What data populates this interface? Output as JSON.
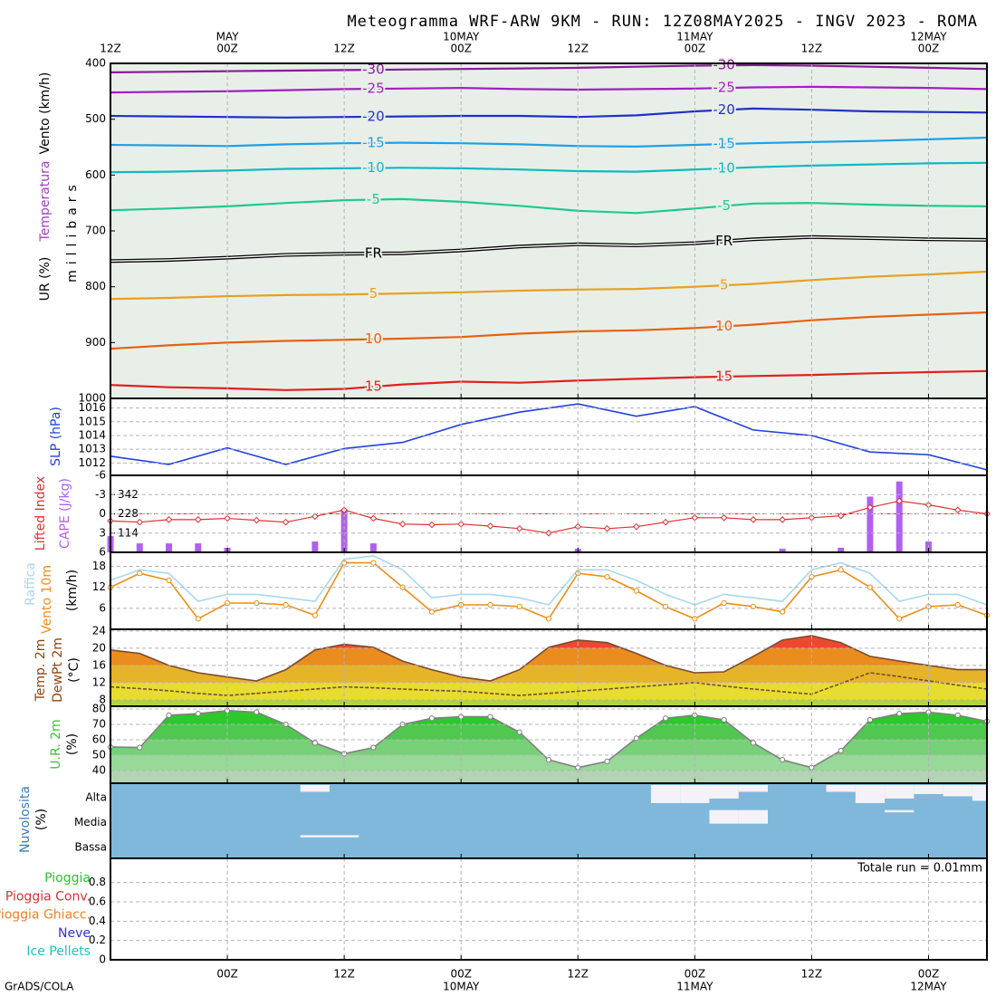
{
  "title": "Meteogramma WRF-ARW 9KM - RUN: 12Z08MAY2025 - INGV 2023 - ROMA",
  "footer": "GrADS/COLA",
  "time_axis": {
    "xlim": [
      0,
      90
    ],
    "ticks_top": [
      {
        "value": 0,
        "label": "12Z"
      },
      {
        "value": 12,
        "label": "00Z"
      },
      {
        "value": 24,
        "label": "12Z"
      },
      {
        "value": 36,
        "label": "00Z"
      },
      {
        "value": 48,
        "label": "12Z"
      },
      {
        "value": 60,
        "label": "00Z"
      },
      {
        "value": 72,
        "label": "12Z"
      },
      {
        "value": 84,
        "label": "00Z"
      }
    ],
    "dates_top": [
      {
        "value": 12,
        "label": "MAY"
      },
      {
        "value": 36,
        "label": "10MAY"
      },
      {
        "value": 60,
        "label": "11MAY"
      },
      {
        "value": 84,
        "label": "12MAY"
      }
    ],
    "ticks_bottom": [
      {
        "value": 12,
        "label": "00Z"
      },
      {
        "value": 24,
        "label": "12Z"
      },
      {
        "value": 36,
        "label": "00Z"
      },
      {
        "value": 48,
        "label": "12Z"
      },
      {
        "value": 60,
        "label": "00Z"
      },
      {
        "value": 72,
        "label": "12Z"
      },
      {
        "value": 84,
        "label": "00Z"
      }
    ],
    "dates_bottom": [
      {
        "value": 36,
        "label": "10MAY"
      },
      {
        "value": 60,
        "label": "11MAY"
      },
      {
        "value": 84,
        "label": "12MAY"
      }
    ]
  },
  "chart_data": [
    {
      "type": "contour",
      "labels": [
        {
          "text": "Vento (km/h)",
          "color": "#000000"
        },
        {
          "text": "Temperatura",
          "color": "#a040c0"
        },
        {
          "text": "UR (%)",
          "color": "#000000"
        },
        {
          "text": "millibars",
          "color": "#000000"
        }
      ],
      "x": [
        0,
        6,
        12,
        18,
        24,
        30,
        36,
        42,
        48,
        54,
        60,
        66,
        72,
        78,
        84,
        90
      ],
      "ylim": [
        1000,
        400
      ],
      "yticks": [
        400,
        500,
        600,
        700,
        800,
        900,
        1000
      ],
      "series": [
        {
          "name": "-30",
          "color": "#8b1a9b",
          "values": [
            416,
            415,
            414,
            413,
            412,
            411,
            410,
            409,
            408,
            406,
            404,
            403,
            404,
            406,
            408,
            410
          ]
        },
        {
          "name": "-25",
          "color": "#a020c0",
          "values": [
            452,
            451,
            450,
            448,
            446,
            445,
            444,
            446,
            447,
            446,
            445,
            443,
            442,
            443,
            444,
            446
          ]
        },
        {
          "name": "-20",
          "color": "#2030c8",
          "values": [
            494,
            495,
            496,
            497,
            496,
            495,
            494,
            494,
            496,
            493,
            486,
            481,
            483,
            486,
            487,
            488
          ]
        },
        {
          "name": "-15",
          "color": "#1ea0e6",
          "values": [
            546,
            547,
            548,
            545,
            543,
            542,
            543,
            545,
            548,
            549,
            546,
            543,
            541,
            539,
            536,
            533
          ]
        },
        {
          "name": "-10",
          "color": "#10b8c0",
          "values": [
            595,
            594,
            592,
            589,
            588,
            587,
            588,
            590,
            593,
            594,
            590,
            586,
            583,
            581,
            579,
            578
          ]
        },
        {
          "name": "-5",
          "color": "#20c890",
          "values": [
            663,
            660,
            656,
            650,
            645,
            643,
            648,
            655,
            664,
            668,
            660,
            651,
            650,
            653,
            655,
            656
          ]
        },
        {
          "name": "FR",
          "color": "#000000",
          "values": [
            754,
            752,
            748,
            743,
            741,
            740,
            735,
            728,
            724,
            726,
            722,
            715,
            711,
            713,
            715,
            716
          ]
        },
        {
          "name": "5",
          "color": "#e8a020",
          "values": [
            822,
            820,
            817,
            815,
            814,
            812,
            810,
            807,
            805,
            804,
            800,
            795,
            788,
            782,
            778,
            773
          ]
        },
        {
          "name": "10",
          "color": "#e86010",
          "values": [
            911,
            905,
            900,
            897,
            895,
            893,
            890,
            884,
            880,
            878,
            874,
            868,
            860,
            854,
            850,
            846
          ]
        },
        {
          "name": "15",
          "color": "#e02020",
          "values": [
            976,
            980,
            982,
            985,
            983,
            975,
            970,
            972,
            968,
            965,
            962,
            960,
            958,
            955,
            953,
            951
          ]
        }
      ]
    },
    {
      "type": "line",
      "grid": true,
      "x": [
        0,
        6,
        12,
        18,
        24,
        30,
        36,
        42,
        48,
        54,
        60,
        66,
        72,
        78,
        84,
        90
      ],
      "ylim": [
        1011.1,
        1016.7
      ],
      "yticks": [
        1012,
        1013,
        1014,
        1015,
        1016
      ],
      "series": [
        {
          "name": "SLP (hPa)",
          "color": "#2040e0",
          "values": [
            1012.5,
            1011.9,
            1013.1,
            1011.9,
            1013.05,
            1013.5,
            1014.8,
            1015.7,
            1016.3,
            1015.4,
            1016.1,
            1014.4,
            1014.0,
            1012.8,
            1012.6,
            1011.5
          ]
        }
      ]
    },
    {
      "type": "li_cape",
      "grid": true,
      "x": [
        0,
        3,
        6,
        9,
        12,
        15,
        18,
        21,
        24,
        27,
        30,
        33,
        36,
        39,
        42,
        45,
        48,
        51,
        54,
        57,
        60,
        63,
        66,
        69,
        72,
        75,
        78,
        81,
        84,
        87,
        90
      ],
      "ylim": [
        6,
        -6
      ],
      "yticks": [
        -6,
        -3,
        0,
        3,
        6
      ],
      "y2lim": [
        0,
        456
      ],
      "y2ticks": [
        114,
        228,
        342
      ],
      "ref_line": 0,
      "series": [
        {
          "name": "Lifted Index",
          "color": "#e03030",
          "values": [
            1.1,
            1.3,
            0.9,
            0.9,
            0.7,
            1.0,
            1.3,
            0.4,
            -0.6,
            0.7,
            1.6,
            1.7,
            1.6,
            1.9,
            2.3,
            3.0,
            2.0,
            2.3,
            2.0,
            1.3,
            0.6,
            0.6,
            0.9,
            0.9,
            0.6,
            0.3,
            -1.0,
            -2.0,
            -1.4,
            -0.6,
            0.0
          ]
        },
        {
          "name": "CAPE (J/kg)",
          "color": "#b060f0",
          "axis": "y2",
          "values": [
            96,
            53,
            53,
            53,
            27,
            0,
            0,
            64,
            256,
            53,
            0,
            0,
            0,
            0,
            0,
            0,
            21,
            0,
            0,
            0,
            0,
            0,
            0,
            21,
            0,
            27,
            330,
            420,
            64,
            0,
            0
          ]
        }
      ]
    },
    {
      "type": "wind",
      "grid": true,
      "ylabel": "(km/h)",
      "x": [
        0,
        3,
        6,
        9,
        12,
        15,
        18,
        21,
        24,
        27,
        30,
        33,
        36,
        39,
        42,
        45,
        48,
        51,
        54,
        57,
        60,
        63,
        66,
        69,
        72,
        75,
        78,
        81,
        84,
        87,
        90
      ],
      "ylim": [
        0,
        22
      ],
      "yticks": [
        6,
        12,
        18
      ],
      "series": [
        {
          "name": "Vento 10m",
          "color": "#f08c14",
          "markers": true,
          "values": [
            12,
            16,
            14,
            3,
            7.5,
            7.5,
            7,
            4,
            19,
            19,
            12,
            5,
            7,
            7,
            6.5,
            3,
            16,
            15,
            11,
            6.5,
            3,
            7.5,
            6.5,
            5,
            15,
            17,
            12,
            3,
            6.5,
            7,
            4
          ]
        },
        {
          "name": "Raffica",
          "color": "#a8d8f0",
          "values": [
            14,
            17,
            16,
            8,
            10,
            10,
            9,
            8,
            20,
            21,
            17,
            9,
            10,
            10,
            9,
            7,
            17,
            17,
            14,
            10,
            7,
            10,
            9,
            8,
            17,
            19,
            16,
            8,
            10,
            10,
            7
          ]
        }
      ]
    },
    {
      "type": "band_area",
      "grid": true,
      "ylabel": "(°C)",
      "x": [
        0,
        3,
        6,
        9,
        12,
        15,
        18,
        21,
        24,
        27,
        30,
        33,
        36,
        39,
        42,
        45,
        48,
        51,
        54,
        57,
        60,
        63,
        66,
        69,
        72,
        75,
        78,
        81,
        84,
        87,
        90
      ],
      "ylim": [
        6.5,
        24.4
      ],
      "yticks": [
        8,
        12,
        16,
        20,
        24
      ],
      "band_colors": [
        "#b4d23c",
        "#e6dc32",
        "#e6b428",
        "#eb8c1e",
        "#f04830",
        "#f04830"
      ],
      "series": [
        {
          "name": "Temp. 2m",
          "color": "#7a4a30",
          "label_color": "#8b4513",
          "values": [
            19.6,
            18.8,
            16,
            14.3,
            13.3,
            12.4,
            15,
            19.6,
            20.9,
            20.2,
            17,
            15,
            13.3,
            12.4,
            15,
            20.2,
            21.9,
            21.3,
            18.8,
            16,
            14.3,
            14.5,
            18.1,
            21.9,
            22.9,
            21.3,
            18.1,
            17,
            16,
            15,
            15
          ]
        },
        {
          "name": "DewPt 2m",
          "color": "#7a4a30",
          "label_color": "#8b4513",
          "dash": true,
          "values": [
            11,
            10.6,
            10.1,
            9.5,
            9,
            9.5,
            10,
            10.5,
            11,
            10.8,
            10.5,
            10.2,
            10,
            9.5,
            9,
            9.5,
            10,
            10.5,
            11,
            11.5,
            12,
            11.2,
            10.5,
            9.9,
            9.3,
            11.8,
            14.3,
            13.4,
            12.4,
            11.4,
            10.5
          ]
        }
      ]
    },
    {
      "type": "band_area",
      "grid": true,
      "ylabel": "(%)",
      "x": [
        0,
        3,
        6,
        9,
        12,
        15,
        18,
        21,
        24,
        27,
        30,
        33,
        36,
        39,
        42,
        45,
        48,
        51,
        54,
        57,
        60,
        63,
        66,
        69,
        72,
        75,
        78,
        81,
        84,
        87,
        90
      ],
      "ylim": [
        31.8,
        81.8
      ],
      "yticks": [
        40,
        50,
        60,
        70,
        80
      ],
      "band_colors": [
        "#b4d2b4",
        "#98d898",
        "#78d078",
        "#50c850",
        "#2cc82c",
        "#14b414"
      ],
      "series": [
        {
          "name": "U.R. 2m",
          "color": "#808080",
          "label_color": "#40c040",
          "markers": true,
          "values": [
            55.3,
            55,
            76,
            77,
            79,
            78,
            70,
            58,
            51,
            55,
            70,
            74,
            75,
            75,
            65,
            47,
            42,
            46,
            61,
            74,
            76,
            73,
            58,
            47,
            42,
            53,
            73,
            77,
            78,
            76,
            72
          ]
        }
      ]
    },
    {
      "type": "cloud",
      "title": "Nuvolosita",
      "title_color": "#3a7ac0",
      "ylabel": "(%)",
      "color": "#80b8dc",
      "cloud_color": "#f4f2f8",
      "categories": [
        "Alta",
        "Media",
        "Bassa"
      ],
      "x": [
        0,
        3,
        6,
        9,
        12,
        15,
        18,
        21,
        24,
        27,
        30,
        33,
        36,
        39,
        42,
        45,
        48,
        51,
        54,
        57,
        60,
        63,
        66,
        69,
        72,
        75,
        78,
        81,
        84,
        87,
        90
      ],
      "series": [
        {
          "values": [
            0,
            0,
            0,
            0,
            0,
            0,
            0,
            30,
            0,
            0,
            0,
            0,
            0,
            0,
            0,
            0,
            0,
            0,
            0,
            80,
            80,
            60,
            30,
            0,
            0,
            30,
            80,
            60,
            40,
            50,
            70
          ]
        },
        {
          "values": [
            0,
            0,
            0,
            0,
            0,
            0,
            0,
            0,
            0,
            0,
            0,
            0,
            0,
            0,
            0,
            0,
            0,
            0,
            0,
            0,
            0,
            60,
            60,
            0,
            0,
            0,
            0,
            10,
            0,
            0,
            0
          ]
        },
        {
          "values": [
            0,
            0,
            0,
            0,
            0,
            0,
            0,
            10,
            10,
            0,
            0,
            0,
            0,
            0,
            0,
            0,
            0,
            0,
            0,
            0,
            0,
            0,
            0,
            0,
            0,
            0,
            0,
            0,
            0,
            0,
            0
          ]
        }
      ]
    },
    {
      "type": "precip",
      "grid": true,
      "annotation": "Totale run = 0.01mm",
      "x": [
        0,
        6,
        12,
        18,
        24,
        30,
        36,
        42,
        48,
        54,
        60,
        66,
        72,
        78,
        84,
        90
      ],
      "ylim": [
        0,
        1.05
      ],
      "yticks": [
        0,
        0.2,
        0.4,
        0.6,
        0.8
      ],
      "series": [
        {
          "name": "Pioggia",
          "color": "#30c030",
          "values": [
            0,
            0,
            0,
            0,
            0,
            0,
            0,
            0,
            0,
            0,
            0,
            0,
            0,
            0,
            0,
            0
          ]
        },
        {
          "name": "Pioggia Conv.",
          "color": "#e03030",
          "values": [
            0,
            0,
            0,
            0,
            0,
            0,
            0,
            0,
            0,
            0,
            0,
            0,
            0,
            0,
            0,
            0
          ]
        },
        {
          "name": "Pioggia Ghiacc.",
          "color": "#f08020",
          "values": [
            0,
            0,
            0,
            0,
            0,
            0,
            0,
            0,
            0,
            0,
            0,
            0,
            0,
            0,
            0,
            0
          ]
        },
        {
          "name": "Neve",
          "color": "#3030e0",
          "values": [
            0,
            0,
            0,
            0,
            0,
            0,
            0,
            0,
            0,
            0,
            0,
            0,
            0,
            0,
            0,
            0
          ]
        },
        {
          "name": "Ice Pellets",
          "color": "#20c0c0",
          "values": [
            0,
            0,
            0,
            0,
            0,
            0,
            0,
            0,
            0,
            0,
            0,
            0,
            0,
            0,
            0,
            0
          ]
        }
      ]
    }
  ]
}
